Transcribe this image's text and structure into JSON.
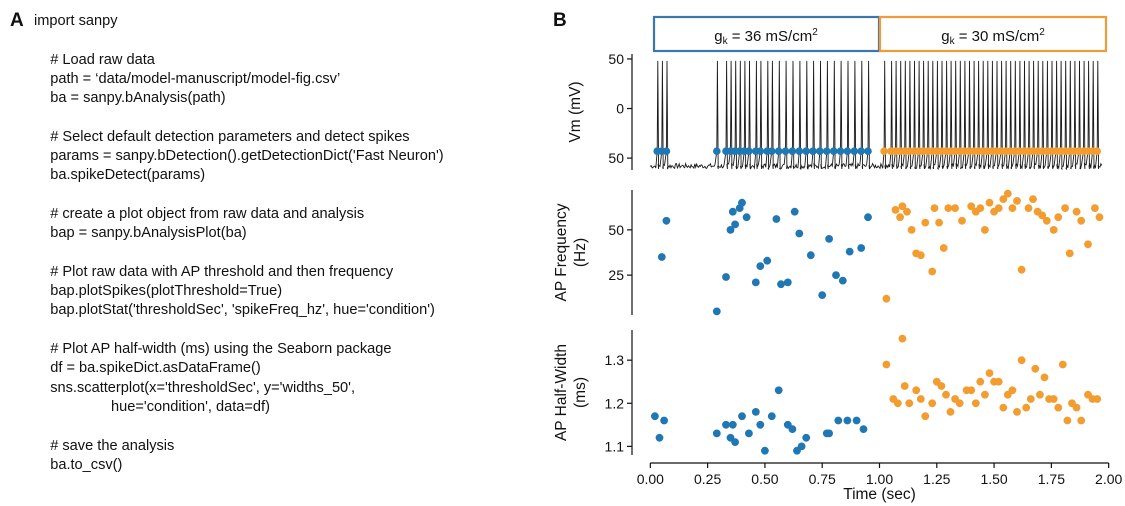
{
  "panel_a": {
    "letter": "A",
    "code_lines": [
      "import sanpy",
      "",
      "    # Load raw data",
      "    path = ‘data/model-manuscript/model-fig.csv’",
      "    ba = sanpy.bAnalysis(path)",
      "",
      "    # Select default detection parameters and detect spikes",
      "    params = sanpy.bDetection().getDetectionDict('Fast Neuron')",
      "    ba.spikeDetect(params)",
      "",
      "    # create a plot object from raw data and analysis",
      "    bap = sanpy.bAnalysisPlot(ba)",
      "",
      "    # Plot raw data with AP threshold and then frequency",
      "    bap.plotSpikes(plotThreshold=True)",
      "    bap.plotStat('thresholdSec', 'spikeFreq_hz', hue='condition')",
      "",
      "    # Plot AP half-width (ms) using the Seaborn package",
      "    df = ba.spikeDict.asDataFrame()",
      "    sns.scatterplot(x='thresholdSec', y='widths_50',",
      "                   hue='condition', data=df)",
      "",
      "    # save the analysis",
      "    ba.to_csv()"
    ]
  },
  "panel_b": {
    "letter": "B",
    "conditions": [
      {
        "label_main": "g",
        "label_sub": "k",
        "label_rest": " = 36 mS/cm",
        "label_sup": "2",
        "color": "#3a77b0"
      },
      {
        "label_main": "g",
        "label_sub": "k",
        "label_rest": " = 30 mS/cm",
        "label_sup": "2",
        "color": "#f19a38"
      }
    ],
    "colors": {
      "blue": "#1f77b4",
      "orange": "#f39c2f",
      "trace": "#1a1a1a"
    },
    "chart_data": [
      {
        "type": "line",
        "name": "voltage-trace",
        "ylabel": "Vm (mV)",
        "yticks": [
          "50",
          "0",
          "50"
        ],
        "ytick_values": [
          50,
          0,
          -50
        ],
        "ylim": [
          -62,
          55
        ],
        "xlim": [
          -0.08,
          2.08
        ],
        "baseline_mv": -58,
        "peak_mv": 48,
        "threshold_mv": -43,
        "series": [
          {
            "condition": 0,
            "spike_times": [
              0.03,
              0.05,
              0.07,
              0.29,
              0.33,
              0.35,
              0.37,
              0.39,
              0.41,
              0.43,
              0.46,
              0.48,
              0.51,
              0.53,
              0.56,
              0.59,
              0.62,
              0.65,
              0.68,
              0.71,
              0.74,
              0.77,
              0.8,
              0.83,
              0.86,
              0.89,
              0.92,
              0.95
            ]
          },
          {
            "condition": 1,
            "spike_times": [
              1.02,
              1.05,
              1.07,
              1.09,
              1.11,
              1.13,
              1.15,
              1.17,
              1.19,
              1.21,
              1.23,
              1.25,
              1.27,
              1.29,
              1.31,
              1.33,
              1.35,
              1.37,
              1.39,
              1.41,
              1.43,
              1.45,
              1.47,
              1.49,
              1.51,
              1.53,
              1.55,
              1.57,
              1.59,
              1.61,
              1.63,
              1.65,
              1.67,
              1.69,
              1.71,
              1.73,
              1.75,
              1.77,
              1.79,
              1.81,
              1.83,
              1.85,
              1.87,
              1.89,
              1.91,
              1.93,
              1.95
            ]
          }
        ]
      },
      {
        "type": "scatter",
        "name": "ap-frequency",
        "ylabel_lines": [
          "AP Frequency",
          "(Hz)"
        ],
        "yticks": [
          "50",
          "25"
        ],
        "ytick_values": [
          50,
          25
        ],
        "ylim": [
          3,
          72
        ],
        "xlim": [
          -0.08,
          2.08
        ],
        "series": [
          {
            "condition": 0,
            "points": [
              [
                0.05,
                35
              ],
              [
                0.07,
                55
              ],
              [
                0.29,
                5
              ],
              [
                0.33,
                24
              ],
              [
                0.35,
                50
              ],
              [
                0.36,
                60
              ],
              [
                0.37,
                53
              ],
              [
                0.39,
                62
              ],
              [
                0.4,
                65
              ],
              [
                0.42,
                57
              ],
              [
                0.46,
                21
              ],
              [
                0.48,
                30
              ],
              [
                0.51,
                33
              ],
              [
                0.55,
                56
              ],
              [
                0.57,
                20
              ],
              [
                0.6,
                21
              ],
              [
                0.63,
                60
              ],
              [
                0.65,
                48
              ],
              [
                0.7,
                36
              ],
              [
                0.75,
                14
              ],
              [
                0.78,
                45
              ],
              [
                0.81,
                25
              ],
              [
                0.84,
                22
              ],
              [
                0.87,
                38
              ],
              [
                0.92,
                40
              ],
              [
                0.95,
                57
              ]
            ]
          },
          {
            "condition": 1,
            "points": [
              [
                1.03,
                12
              ],
              [
                1.07,
                61
              ],
              [
                1.09,
                57
              ],
              [
                1.1,
                63
              ],
              [
                1.12,
                60
              ],
              [
                1.14,
                50
              ],
              [
                1.16,
                37
              ],
              [
                1.18,
                36
              ],
              [
                1.2,
                54
              ],
              [
                1.23,
                27
              ],
              [
                1.24,
                62
              ],
              [
                1.26,
                54
              ],
              [
                1.28,
                40
              ],
              [
                1.3,
                62
              ],
              [
                1.33,
                62
              ],
              [
                1.36,
                55
              ],
              [
                1.4,
                63
              ],
              [
                1.42,
                60
              ],
              [
                1.44,
                62
              ],
              [
                1.46,
                50
              ],
              [
                1.48,
                65
              ],
              [
                1.5,
                60
              ],
              [
                1.52,
                62
              ],
              [
                1.54,
                67
              ],
              [
                1.56,
                70
              ],
              [
                1.58,
                62
              ],
              [
                1.6,
                66
              ],
              [
                1.62,
                28
              ],
              [
                1.65,
                62
              ],
              [
                1.67,
                67
              ],
              [
                1.69,
                60
              ],
              [
                1.71,
                58
              ],
              [
                1.73,
                55
              ],
              [
                1.76,
                50
              ],
              [
                1.78,
                57
              ],
              [
                1.81,
                62
              ],
              [
                1.83,
                37
              ],
              [
                1.86,
                60
              ],
              [
                1.88,
                55
              ],
              [
                1.91,
                42
              ],
              [
                1.94,
                62
              ],
              [
                1.96,
                57
              ]
            ]
          }
        ]
      },
      {
        "type": "scatter",
        "name": "ap-half-width",
        "ylabel_lines": [
          "AP Half-Width",
          "(ms)"
        ],
        "yticks": [
          "1.3",
          "1.2",
          "1.1"
        ],
        "ytick_values": [
          1.3,
          1.2,
          1.1
        ],
        "ylim": [
          1.08,
          1.37
        ],
        "xlabel": "Time (sec)",
        "xticks": [
          "0.00",
          "0.25",
          "0.50",
          "0.75",
          "1.00",
          "1.25",
          "1.50",
          "1.75",
          "2.00"
        ],
        "xtick_values": [
          0,
          0.25,
          0.5,
          0.75,
          1.0,
          1.25,
          1.5,
          1.75,
          2.0
        ],
        "xlim": [
          -0.08,
          2.08
        ],
        "series": [
          {
            "condition": 0,
            "points": [
              [
                0.02,
                1.17
              ],
              [
                0.04,
                1.12
              ],
              [
                0.06,
                1.16
              ],
              [
                0.29,
                1.13
              ],
              [
                0.33,
                1.15
              ],
              [
                0.35,
                1.12
              ],
              [
                0.36,
                1.15
              ],
              [
                0.37,
                1.11
              ],
              [
                0.4,
                1.17
              ],
              [
                0.43,
                1.13
              ],
              [
                0.46,
                1.18
              ],
              [
                0.48,
                1.15
              ],
              [
                0.5,
                1.09
              ],
              [
                0.53,
                1.17
              ],
              [
                0.56,
                1.23
              ],
              [
                0.6,
                1.15
              ],
              [
                0.62,
                1.14
              ],
              [
                0.64,
                1.09
              ],
              [
                0.66,
                1.1
              ],
              [
                0.68,
                1.12
              ],
              [
                0.77,
                1.13
              ],
              [
                0.78,
                1.13
              ],
              [
                0.82,
                1.16
              ],
              [
                0.86,
                1.16
              ],
              [
                0.9,
                1.16
              ],
              [
                0.93,
                1.14
              ]
            ]
          },
          {
            "condition": 1,
            "points": [
              [
                1.03,
                1.29
              ],
              [
                1.06,
                1.21
              ],
              [
                1.08,
                1.2
              ],
              [
                1.1,
                1.35
              ],
              [
                1.11,
                1.24
              ],
              [
                1.13,
                1.2
              ],
              [
                1.16,
                1.23
              ],
              [
                1.18,
                1.21
              ],
              [
                1.2,
                1.17
              ],
              [
                1.23,
                1.2
              ],
              [
                1.25,
                1.25
              ],
              [
                1.27,
                1.24
              ],
              [
                1.29,
                1.22
              ],
              [
                1.31,
                1.18
              ],
              [
                1.33,
                1.21
              ],
              [
                1.35,
                1.2
              ],
              [
                1.38,
                1.23
              ],
              [
                1.4,
                1.23
              ],
              [
                1.42,
                1.2
              ],
              [
                1.44,
                1.25
              ],
              [
                1.46,
                1.22
              ],
              [
                1.48,
                1.27
              ],
              [
                1.5,
                1.25
              ],
              [
                1.52,
                1.25
              ],
              [
                1.54,
                1.19
              ],
              [
                1.56,
                1.22
              ],
              [
                1.58,
                1.23
              ],
              [
                1.6,
                1.18
              ],
              [
                1.62,
                1.3
              ],
              [
                1.64,
                1.19
              ],
              [
                1.66,
                1.21
              ],
              [
                1.68,
                1.28
              ],
              [
                1.7,
                1.22
              ],
              [
                1.72,
                1.26
              ],
              [
                1.74,
                1.21
              ],
              [
                1.76,
                1.21
              ],
              [
                1.78,
                1.19
              ],
              [
                1.8,
                1.29
              ],
              [
                1.82,
                1.16
              ],
              [
                1.84,
                1.2
              ],
              [
                1.86,
                1.19
              ],
              [
                1.88,
                1.16
              ],
              [
                1.91,
                1.22
              ],
              [
                1.93,
                1.21
              ],
              [
                1.95,
                1.21
              ]
            ]
          }
        ]
      }
    ]
  }
}
